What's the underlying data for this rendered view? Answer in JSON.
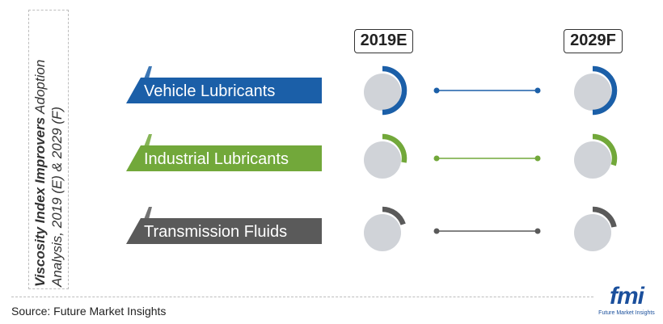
{
  "title": {
    "bold": "Viscosity Index Improvers",
    "rest": "Adoption Analysis, 2019 (E) & 2029 (F)"
  },
  "source": "Source: Future Market Insights",
  "logo": {
    "mark": "fmi",
    "tagline": "Future Market Insights"
  },
  "colors": {
    "vehicle": "#1b5fa8",
    "industrial": "#72a83a",
    "transmission": "#5a5a5a",
    "circle": "#d0d3d8"
  },
  "chart_data": {
    "type": "table",
    "columns": [
      "2019E",
      "2029F"
    ],
    "rows": [
      {
        "label": "Vehicle Lubricants",
        "color": "#1b5fa8",
        "values": [
          50,
          50
        ]
      },
      {
        "label": "Industrial Lubricants",
        "color": "#72a83a",
        "values": [
          28,
          30
        ]
      },
      {
        "label": "Transmission Fluids",
        "color": "#5a5a5a",
        "values": [
          20,
          22
        ]
      }
    ]
  }
}
